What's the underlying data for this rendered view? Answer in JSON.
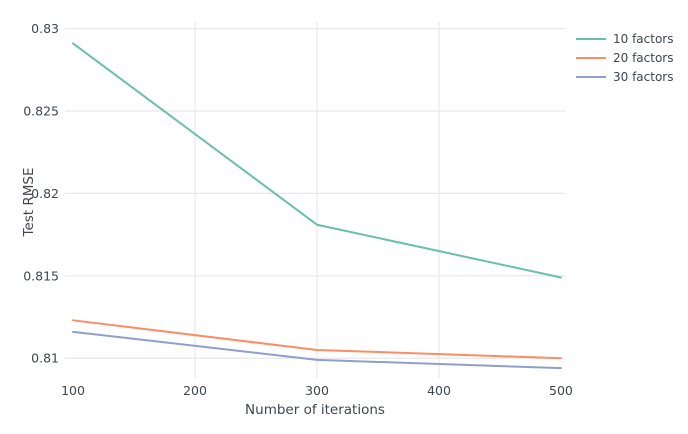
{
  "chart_data": {
    "type": "line",
    "title": "",
    "xlabel": "Number of iterations",
    "ylabel": "Test RMSE",
    "x": [
      100,
      300,
      500
    ],
    "series": [
      {
        "name": "10 factors",
        "color": "#66c2a5",
        "values": [
          0.8291,
          0.8181,
          0.8149
        ]
      },
      {
        "name": "20 factors",
        "color": "#fc8d62",
        "values": [
          0.8123,
          0.8105,
          0.81
        ]
      },
      {
        "name": "30 factors",
        "color": "#8da0cb",
        "values": [
          0.8116,
          0.8099,
          0.8094
        ]
      }
    ],
    "x_ticks": [
      "100",
      "200",
      "300",
      "400",
      "500"
    ],
    "x_tick_values": [
      100,
      200,
      300,
      400,
      500
    ],
    "x_gridline_values": [
      200,
      300,
      400
    ],
    "y_ticks": [
      "0.83",
      "0.825",
      "0.82",
      "0.815",
      "0.81"
    ],
    "y_tick_values": [
      0.83,
      0.825,
      0.82,
      0.815,
      0.81
    ],
    "xlim": [
      93.4,
      503.3
    ],
    "ylim": [
      0.8088,
      0.8304
    ],
    "grid": true,
    "legend_position": "top-right-outside",
    "colors": {
      "background": "#ffffff",
      "grid": "#e8e8e8",
      "text": "#3f464d"
    },
    "line_width": 2
  }
}
